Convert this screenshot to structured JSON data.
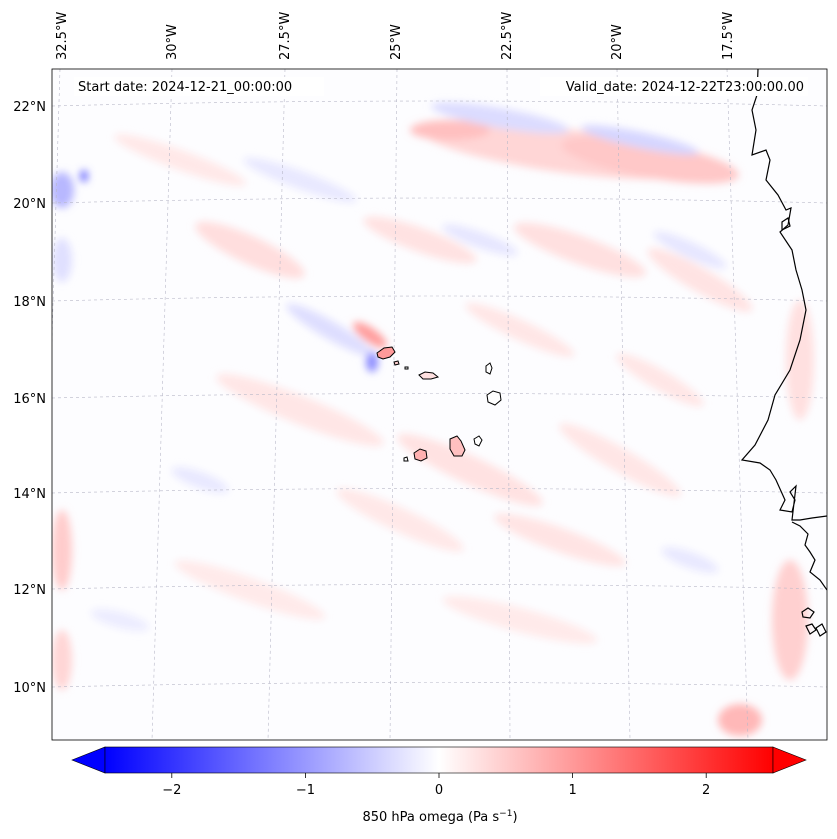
{
  "map": {
    "annotation_start": "Start date: 2024-12-21_00:00:00",
    "annotation_valid": "Valid_date: 2024-12-22T23:00:00.00",
    "lon_labels": [
      "32.5°W",
      "30°W",
      "27.5°W",
      "25°W",
      "22.5°W",
      "20°W",
      "17.5°W"
    ],
    "lat_labels": [
      "22°N",
      "20°N",
      "18°N",
      "16°N",
      "14°N",
      "12°N",
      "10°N"
    ],
    "colors": {
      "negative": "#0000ff",
      "neutral": "#ffffff",
      "positive": "#ff0000",
      "coastline": "#000000"
    }
  },
  "colorbar": {
    "label": "850 hPa omega (Pa s",
    "label_exponent": "−1",
    "label_close": ")",
    "tick_labels": [
      "−2",
      "−1",
      "0",
      "1",
      "2"
    ],
    "tick_values": [
      -2,
      -1,
      0,
      1,
      2
    ],
    "range": [
      -2.5,
      2.5
    ],
    "extend": "both"
  }
}
